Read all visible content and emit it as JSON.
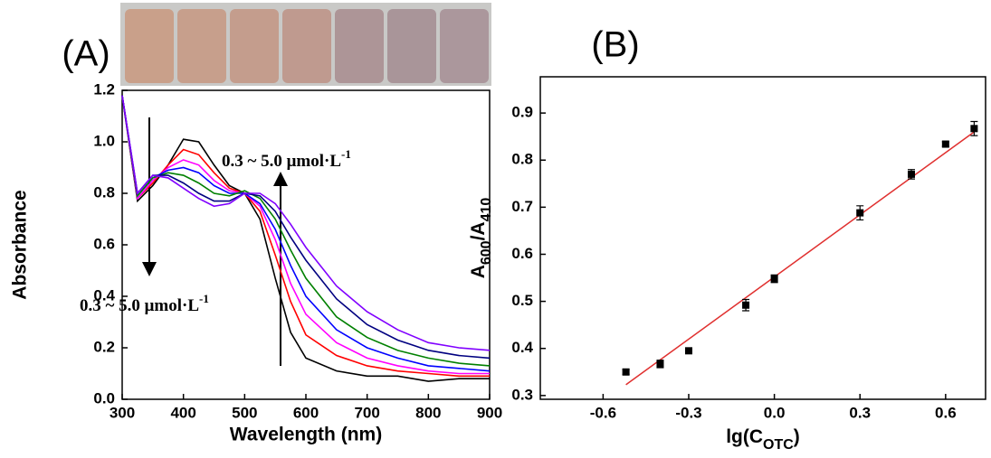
{
  "chart_data": [
    {
      "type": "line",
      "title": "(A)",
      "xlabel": "Wavelength (nm)",
      "ylabel": "Absorbance",
      "x": [
        300,
        325,
        350,
        375,
        400,
        425,
        450,
        475,
        500,
        525,
        550,
        575,
        600,
        650,
        700,
        750,
        800,
        850,
        900
      ],
      "series": [
        {
          "color": "#000000",
          "values": [
            1.18,
            0.77,
            0.83,
            0.91,
            1.01,
            1.0,
            0.91,
            0.83,
            0.8,
            0.7,
            0.47,
            0.26,
            0.16,
            0.11,
            0.09,
            0.09,
            0.07,
            0.08,
            0.08
          ]
        },
        {
          "color": "#ff0000",
          "values": [
            1.18,
            0.78,
            0.84,
            0.91,
            0.97,
            0.95,
            0.88,
            0.82,
            0.8,
            0.73,
            0.56,
            0.38,
            0.25,
            0.17,
            0.13,
            0.11,
            0.1,
            0.09,
            0.09
          ]
        },
        {
          "color": "#ff00ff",
          "values": [
            1.18,
            0.78,
            0.85,
            0.9,
            0.93,
            0.91,
            0.85,
            0.81,
            0.8,
            0.75,
            0.62,
            0.45,
            0.33,
            0.22,
            0.16,
            0.13,
            0.11,
            0.1,
            0.1
          ]
        },
        {
          "color": "#0000ff",
          "values": [
            1.18,
            0.79,
            0.86,
            0.89,
            0.9,
            0.88,
            0.83,
            0.8,
            0.8,
            0.76,
            0.66,
            0.52,
            0.4,
            0.27,
            0.2,
            0.16,
            0.13,
            0.12,
            0.11
          ]
        },
        {
          "color": "#008000",
          "values": [
            1.18,
            0.79,
            0.86,
            0.88,
            0.87,
            0.84,
            0.8,
            0.79,
            0.81,
            0.78,
            0.7,
            0.58,
            0.47,
            0.32,
            0.24,
            0.19,
            0.16,
            0.14,
            0.13
          ]
        },
        {
          "color": "#000080",
          "values": [
            1.18,
            0.8,
            0.87,
            0.87,
            0.84,
            0.8,
            0.77,
            0.77,
            0.8,
            0.79,
            0.73,
            0.63,
            0.54,
            0.39,
            0.29,
            0.23,
            0.19,
            0.17,
            0.16
          ]
        },
        {
          "color": "#8000ff",
          "values": [
            1.18,
            0.8,
            0.87,
            0.86,
            0.82,
            0.78,
            0.75,
            0.76,
            0.8,
            0.8,
            0.76,
            0.68,
            0.59,
            0.44,
            0.34,
            0.27,
            0.22,
            0.2,
            0.19
          ]
        }
      ],
      "xlim": [
        300,
        900
      ],
      "xticks": [
        300,
        400,
        500,
        600,
        700,
        800,
        900
      ],
      "ylim": [
        0,
        1.2
      ],
      "yticks": [
        {
          "value": 0,
          "label": "0.0"
        },
        0.2,
        0.4,
        0.6,
        0.8,
        {
          "value": 1,
          "label": "1.0"
        },
        1.2
      ],
      "annotations": [
        {
          "text": "0.3 ~ 5.0 μmol·L",
          "sup": "-1"
        },
        {
          "text": "0.3 ~ 5.0 μmol·L",
          "sup": "-1"
        }
      ]
    },
    {
      "type": "scatter",
      "title": "(B)",
      "xlabel_parts": [
        {
          "text": "lg(C"
        },
        {
          "text": "OTC",
          "sub": true
        },
        {
          "text": ")"
        }
      ],
      "ylabel_parts": [
        {
          "text": "A"
        },
        {
          "text": "600",
          "sub": true
        },
        {
          "text": "/A"
        },
        {
          "text": "410",
          "sub": true
        }
      ],
      "x": [
        -0.52,
        -0.4,
        -0.3,
        -0.1,
        0,
        0.3,
        0.48,
        0.6,
        0.7
      ],
      "values": [
        0.35,
        0.367,
        0.395,
        0.492,
        0.548,
        0.688,
        0.77,
        0.834,
        0.867
      ],
      "errors": [
        0.005,
        0.008,
        0.005,
        0.012,
        0.008,
        0.015,
        0.01,
        0.005,
        0.015
      ],
      "color": "#000000",
      "fit": {
        "x": [
          -0.52,
          0.7
        ],
        "values": [
          0.323,
          0.86
        ],
        "color": "#e0302f"
      },
      "xlim": [
        -0.82,
        0.74
      ],
      "xticks": [
        -0.6,
        -0.3,
        {
          "value": 0,
          "label": "0.0"
        },
        0.3,
        0.6
      ],
      "ylim": [
        0.292,
        0.977
      ],
      "yticks": [
        0.3,
        0.4,
        0.5,
        0.6,
        0.7,
        0.8,
        0.9
      ]
    }
  ]
}
